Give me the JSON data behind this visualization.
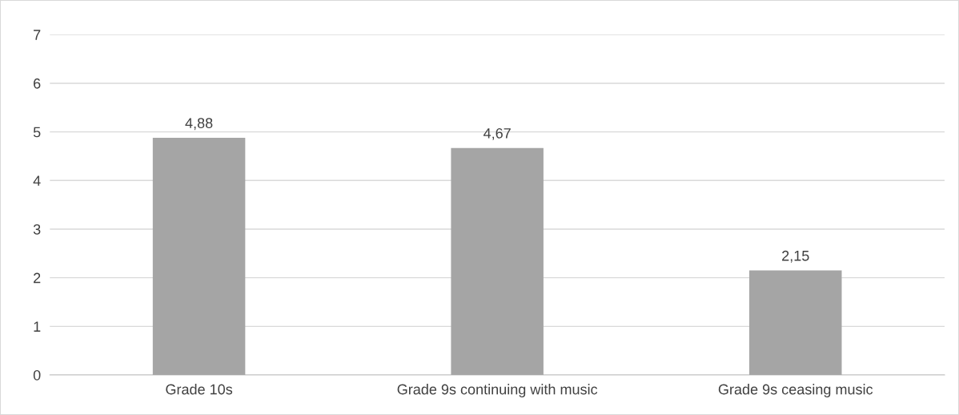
{
  "chart_data": {
    "type": "bar",
    "categories": [
      "Grade 10s",
      "Grade 9s continuing with music",
      "Grade 9s ceasing music"
    ],
    "values": [
      4.88,
      4.67,
      2.15
    ],
    "value_labels": [
      "4,88",
      "4,67",
      "2,15"
    ],
    "color": "#a5a5a5",
    "ylim": [
      0,
      7
    ],
    "yticks": [
      0,
      1,
      2,
      3,
      4,
      5,
      6,
      7
    ],
    "grid": "y",
    "legend": false
  }
}
